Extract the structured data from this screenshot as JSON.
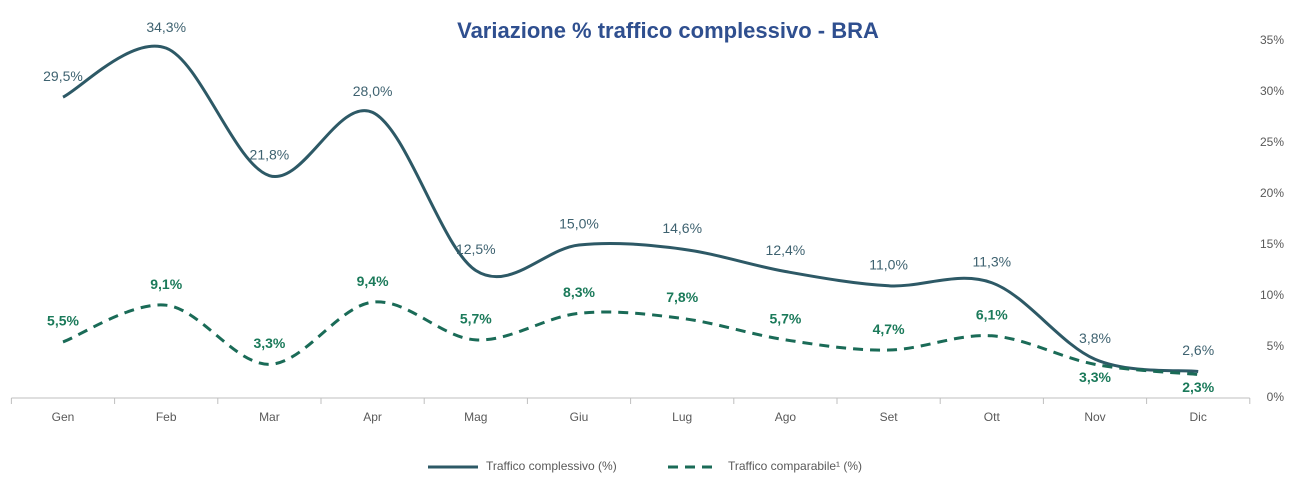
{
  "chart_data": {
    "type": "line",
    "title": "Variazione % traffico complessivo - BRA",
    "categories": [
      "Gen",
      "Feb",
      "Mar",
      "Apr",
      "Mag",
      "Giu",
      "Lug",
      "Ago",
      "Set",
      "Ott",
      "Nov",
      "Dic"
    ],
    "series": [
      {
        "name": "Traffico complessivo (%)",
        "color": "#2d5966",
        "dash": false,
        "values": [
          29.5,
          34.3,
          21.8,
          28.0,
          12.5,
          15.0,
          14.6,
          12.4,
          11.0,
          11.3,
          3.8,
          2.6
        ],
        "value_labels": [
          "29,5%",
          "34,3%",
          "21,8%",
          "28,0%",
          "12,5%",
          "15,0%",
          "14,6%",
          "12,4%",
          "11,0%",
          "11,3%",
          "3,8%",
          "2,6%"
        ]
      },
      {
        "name": "Traffico comparabile¹ (%)",
        "color": "#1a6b57",
        "dash": true,
        "values": [
          5.5,
          9.1,
          3.3,
          9.4,
          5.7,
          8.3,
          7.8,
          5.7,
          4.7,
          6.1,
          3.3,
          2.3
        ],
        "value_labels": [
          "5,5%",
          "9,1%",
          "3,3%",
          "9,4%",
          "5,7%",
          "8,3%",
          "7,8%",
          "5,7%",
          "4,7%",
          "6,1%",
          "3,3%",
          "2,3%"
        ]
      }
    ],
    "ylim": [
      0,
      35
    ],
    "yticks": [
      {
        "value": 0,
        "label": "0%"
      },
      {
        "value": 5,
        "label": "5%"
      },
      {
        "value": 10,
        "label": "10%"
      },
      {
        "value": 15,
        "label": "15%"
      },
      {
        "value": 20,
        "label": "20%"
      },
      {
        "value": 25,
        "label": "25%"
      },
      {
        "value": 30,
        "label": "30%"
      },
      {
        "value": 35,
        "label": "35%"
      }
    ],
    "y_axis_side": "right",
    "grid": false,
    "legend": "bottom"
  }
}
